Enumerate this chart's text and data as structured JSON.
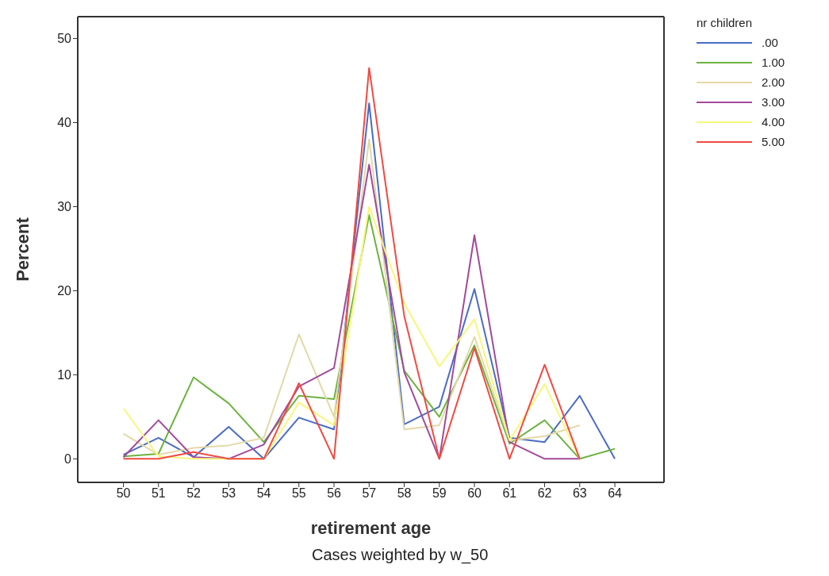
{
  "chart_data": {
    "type": "line",
    "xlabel": "retirement age",
    "ylabel": "Percent",
    "legend_title": "nr children",
    "annotations": [
      "Cases weighted by w_50"
    ],
    "x": [
      50,
      51,
      52,
      53,
      54,
      55,
      56,
      57,
      58,
      59,
      60,
      61,
      62,
      63,
      64
    ],
    "xlim": [
      48.7,
      65.4
    ],
    "xticks": [
      50,
      51,
      52,
      53,
      54,
      55,
      56,
      57,
      58,
      59,
      60,
      61,
      62,
      63,
      64
    ],
    "ylim": [
      -2.8,
      52.6
    ],
    "yticks": [
      0,
      10,
      20,
      30,
      40,
      50
    ],
    "legend": "top right",
    "marker": "none",
    "line_style": "solid",
    "series": [
      {
        "name": ".00",
        "color": "#4a6cc4",
        "values": [
          0.5,
          2.5,
          0.2,
          3.8,
          0,
          4.9,
          3.5,
          42.3,
          4.1,
          6.2,
          20.2,
          2.5,
          2.0,
          7.5,
          0
        ]
      },
      {
        "name": "1.00",
        "color": "#6cb33f",
        "values": [
          0.3,
          0.6,
          9.7,
          6.6,
          2.0,
          7.5,
          7.1,
          29,
          10.5,
          5.0,
          13.5,
          1.8,
          4.6,
          0,
          1.2
        ]
      },
      {
        "name": "2.00",
        "color": "#e3d9a8",
        "values": [
          3.0,
          0.5,
          1.3,
          1.6,
          2.5,
          14.8,
          5.0,
          38,
          3.5,
          4.0,
          14.5,
          2.2,
          2.7,
          4.0,
          null
        ]
      },
      {
        "name": "3.00",
        "color": "#a24a9c",
        "values": [
          0.2,
          4.6,
          0.2,
          0,
          1.7,
          8.6,
          10.8,
          35,
          10.3,
          0,
          26.6,
          2.0,
          0,
          0,
          null
        ]
      },
      {
        "name": "4.00",
        "color": "#f7f77a",
        "values": [
          6.0,
          0.3,
          0,
          0,
          0,
          6.7,
          4.0,
          30,
          18.5,
          11.0,
          16.6,
          2.2,
          8.9,
          0,
          null
        ]
      },
      {
        "name": "5.00",
        "color": "#f04a42",
        "values": [
          0,
          0,
          0.8,
          0,
          0,
          9.0,
          0,
          46.5,
          17,
          0,
          13.2,
          0,
          11.2,
          0,
          null
        ]
      }
    ]
  }
}
